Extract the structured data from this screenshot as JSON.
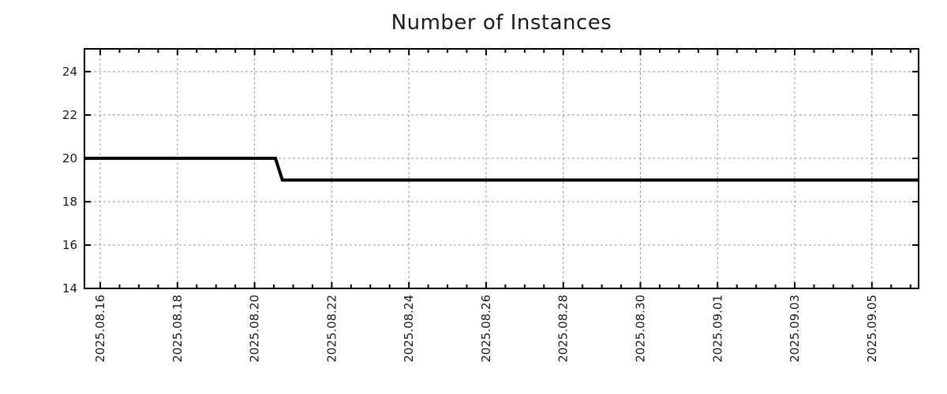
{
  "chart_data": {
    "type": "line",
    "title": "Number of Instances",
    "legend_position": "none",
    "x_axis": {
      "kind": "date",
      "tick_labels": [
        "2025.08.16",
        "2025.08.18",
        "2025.08.20",
        "2025.08.22",
        "2025.08.24",
        "2025.08.26",
        "2025.08.28",
        "2025.08.30",
        "2025.09.01",
        "2025.09.03",
        "2025.09.05"
      ],
      "tick_days": [
        0,
        2,
        4,
        6,
        8,
        10,
        12,
        14,
        16,
        18,
        20
      ],
      "day_zero_label": "2025.08.16",
      "range_days": [
        -0.41,
        21.21
      ],
      "minor_tick_step_days": 0.5,
      "label_rotation_deg": -90
    },
    "y_axis": {
      "tick_labels": [
        "14",
        "16",
        "18",
        "20",
        "22",
        "24"
      ],
      "tick_values": [
        14,
        16,
        18,
        20,
        22,
        24
      ],
      "range": [
        14,
        25.05
      ]
    },
    "series": [
      {
        "name": "number-of-instances",
        "color": "#000000",
        "line_width": 4,
        "points": [
          {
            "day": -0.41,
            "value": 20
          },
          {
            "day": 4.54,
            "value": 20
          },
          {
            "day": 4.72,
            "value": 19
          },
          {
            "day": 21.21,
            "value": 19
          }
        ],
        "summary": "20 instances from plot start until 2025.08.20 ~13:00, then drops to 19 instances through plot end"
      }
    ],
    "grid": {
      "show": true,
      "color": "#999999",
      "dash": "3,3",
      "line_width": 1
    },
    "frame": {
      "color": "#000000",
      "line_width": 2,
      "major_tick_len": 8,
      "minor_tick_len": 5,
      "ticks_mirrored": true
    },
    "colors": {
      "background": "#ffffff",
      "tick_text": "#1a1a1a",
      "title_text": "#1a1a1a"
    }
  }
}
